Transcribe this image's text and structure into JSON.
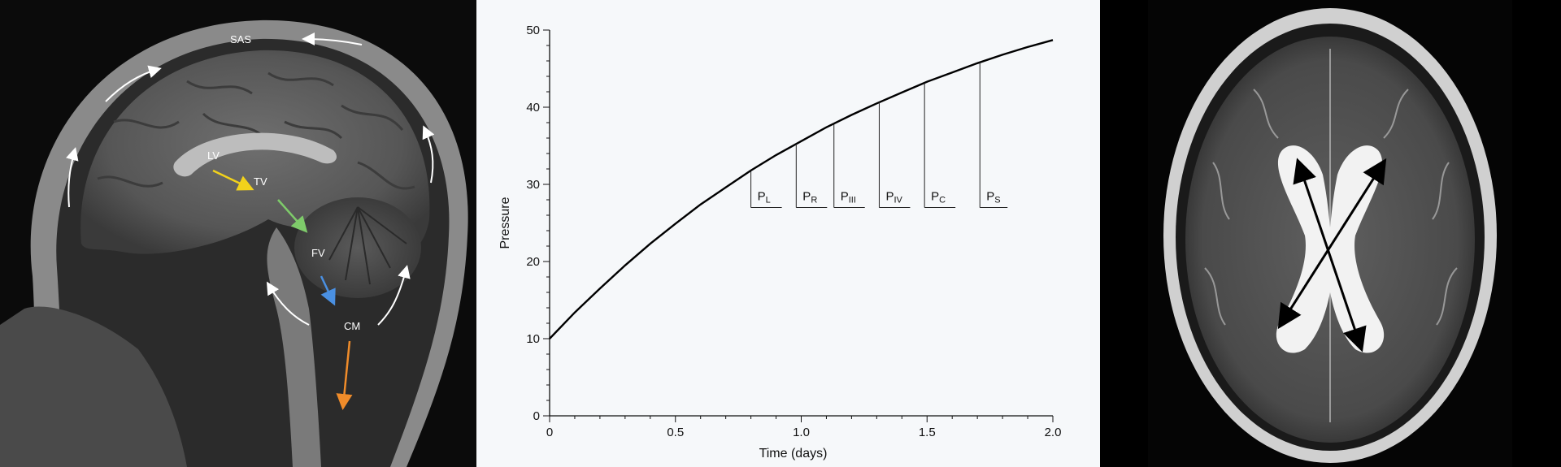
{
  "sagittal_labels": {
    "sas": "SAS",
    "lv": "LV",
    "tv": "TV",
    "fv": "FV",
    "cm": "CM"
  },
  "chart_data": {
    "type": "line",
    "title": "",
    "xlabel": "Time (days)",
    "ylabel": "Pressure",
    "xlim": [
      0,
      2.0
    ],
    "ylim": [
      0,
      50
    ],
    "xticks": [
      "0",
      "0.5",
      "1.0",
      "1.5",
      "2.0"
    ],
    "xtick_values": [
      0,
      0.5,
      1.0,
      1.5,
      2.0
    ],
    "yticks": [
      "0",
      "10",
      "20",
      "30",
      "40",
      "50"
    ],
    "ytick_values": [
      0,
      10,
      20,
      30,
      40,
      50
    ],
    "series": [
      {
        "x": [
          0,
          0.1,
          0.2,
          0.3,
          0.4,
          0.5,
          0.6,
          0.7,
          0.8,
          0.9,
          1.0,
          1.1,
          1.2,
          1.3,
          1.4,
          1.5,
          1.6,
          1.7,
          1.8,
          1.9,
          2.0
        ],
        "y": [
          10.0,
          13.4,
          16.5,
          19.5,
          22.3,
          24.9,
          27.4,
          29.6,
          31.8,
          33.8,
          35.6,
          37.4,
          39.0,
          40.5,
          41.9,
          43.3,
          44.5,
          45.7,
          46.8,
          47.8,
          48.7
        ]
      }
    ],
    "annotations": [
      {
        "base": "P",
        "sub": "L",
        "x": 0.8
      },
      {
        "base": "P",
        "sub": "R",
        "x": 0.98
      },
      {
        "base": "P",
        "sub": "III",
        "x": 1.13
      },
      {
        "base": "P",
        "sub": "IV",
        "x": 1.31
      },
      {
        "base": "P",
        "sub": "C",
        "x": 1.49
      },
      {
        "base": "P",
        "sub": "S",
        "x": 1.71
      }
    ],
    "annotation_floor": 27
  }
}
